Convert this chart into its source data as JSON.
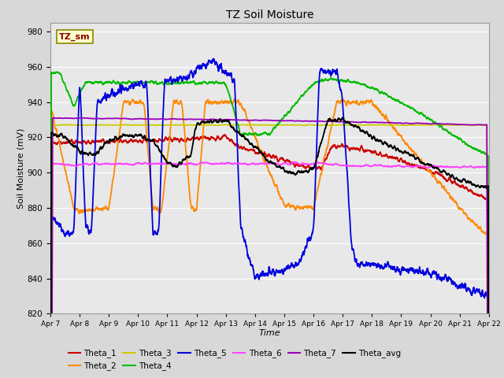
{
  "title": "TZ Soil Moisture",
  "xlabel": "Time",
  "ylabel": "Soil Moisture (mV)",
  "ylim": [
    820,
    985
  ],
  "xlim": [
    0,
    15
  ],
  "x_tick_labels": [
    "Apr 7",
    "Apr 8",
    "Apr 9",
    "Apr 10",
    "Apr 11",
    "Apr 12",
    "Apr 13",
    "Apr 14",
    "Apr 15",
    "Apr 16",
    "Apr 17",
    "Apr 18",
    "Apr 19",
    "Apr 20",
    "Apr 21",
    "Apr 22"
  ],
  "legend_label": "TZ_sm",
  "series_colors": {
    "Theta_1": "#cc0000",
    "Theta_2": "#ff8800",
    "Theta_3": "#cccc00",
    "Theta_4": "#00bb00",
    "Theta_5": "#0000dd",
    "Theta_6": "#ff44ff",
    "Theta_7": "#9900bb",
    "Theta_avg": "#000000"
  },
  "bg_color": "#e8e8e8",
  "grid_color": "#ffffff",
  "fig_bg": "#d8d8d8"
}
